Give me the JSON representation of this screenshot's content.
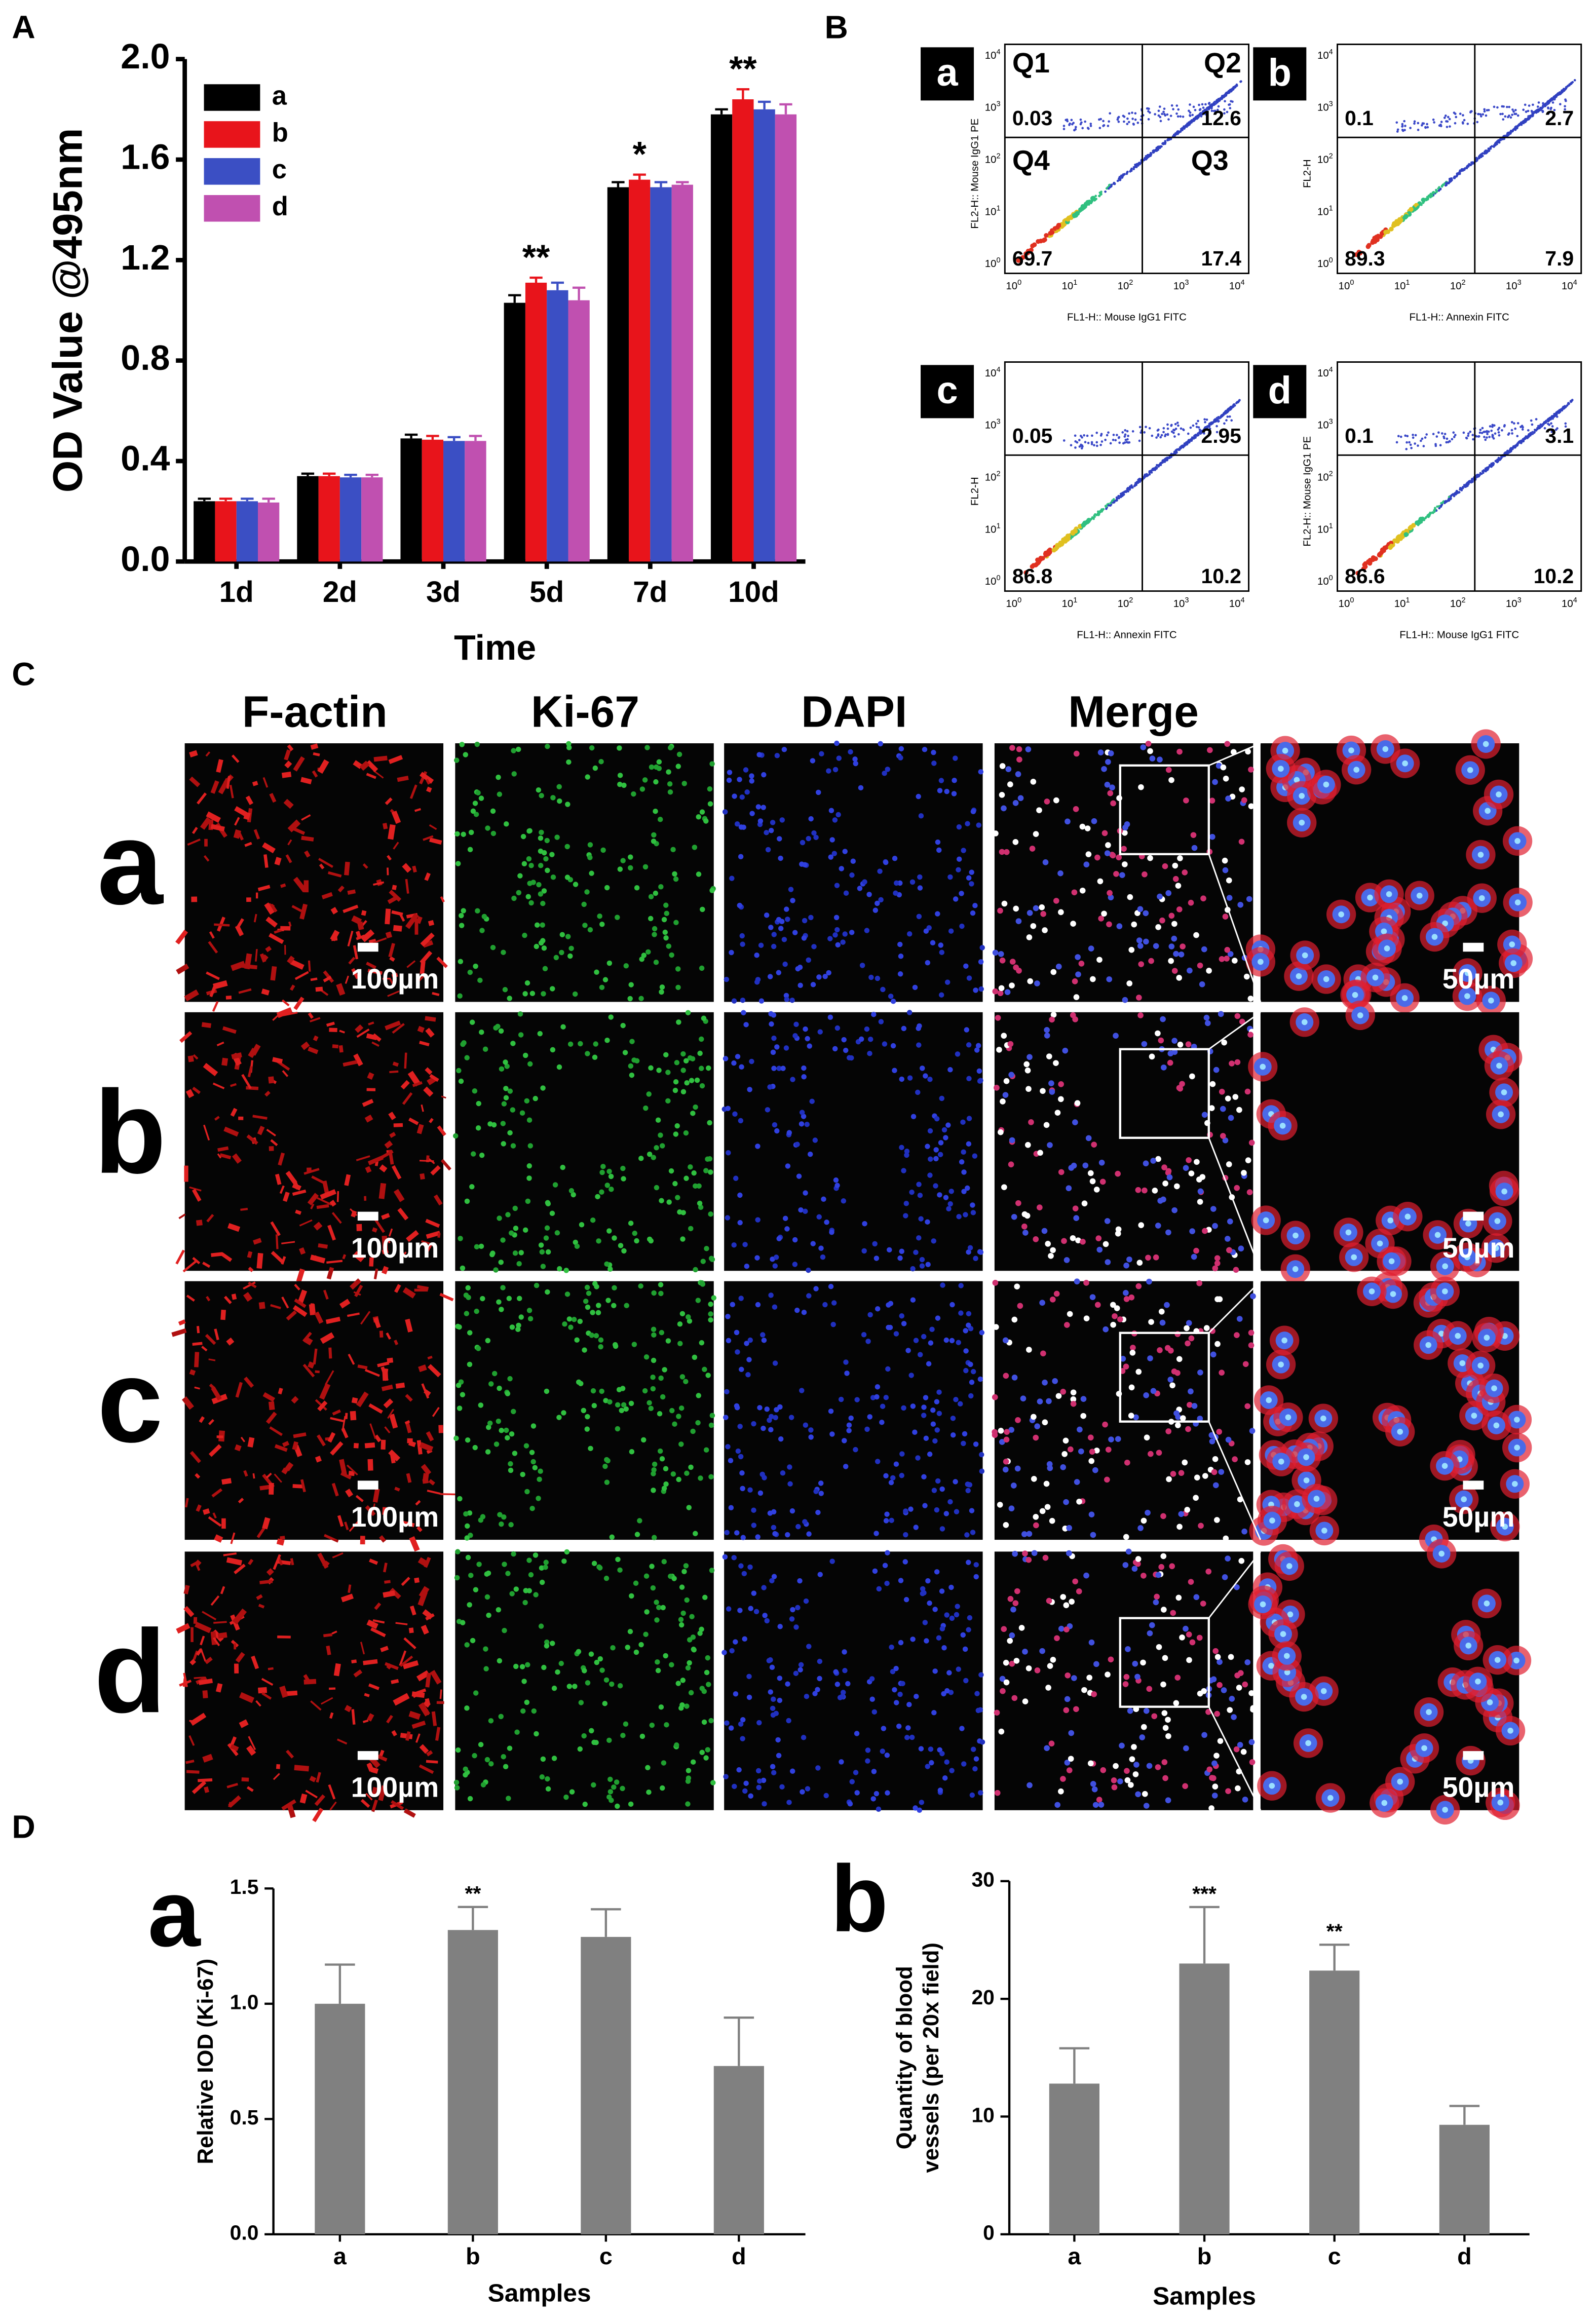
{
  "panel_labels": [
    "A",
    "B",
    "C",
    "D"
  ],
  "chart_data": [
    {
      "type": "bar",
      "ylabel": "OD Value @495nm",
      "xlabel": "Time",
      "categories": [
        "1d",
        "2d",
        "3d",
        "5d",
        "7d",
        "10d"
      ],
      "series": [
        {
          "name": "a",
          "color": "#000000",
          "values": [
            0.24,
            0.34,
            0.49,
            1.03,
            1.49,
            1.78
          ],
          "errors": [
            0.01,
            0.01,
            0.015,
            0.03,
            0.02,
            0.02
          ]
        },
        {
          "name": "b",
          "color": "#e8141b",
          "values": [
            0.24,
            0.34,
            0.485,
            1.11,
            1.52,
            1.84
          ],
          "errors": [
            0.01,
            0.01,
            0.015,
            0.02,
            0.02,
            0.04
          ]
        },
        {
          "name": "c",
          "color": "#3b4fc4",
          "values": [
            0.24,
            0.335,
            0.48,
            1.08,
            1.49,
            1.8
          ],
          "errors": [
            0.01,
            0.01,
            0.015,
            0.03,
            0.02,
            0.03
          ]
        },
        {
          "name": "d",
          "color": "#c050b0",
          "values": [
            0.235,
            0.335,
            0.48,
            1.04,
            1.5,
            1.78
          ],
          "errors": [
            0.015,
            0.01,
            0.02,
            0.05,
            0.01,
            0.04
          ]
        }
      ],
      "ylim": [
        0,
        2
      ],
      "yticks": [
        {
          "value": 0,
          "label": "0.0"
        },
        0.4,
        0.8,
        1.2,
        1.6,
        {
          "value": 2,
          "label": "2.0"
        }
      ],
      "legend": "upper-left",
      "annotations": [
        {
          "text": "**",
          "category": "5d",
          "series": "b"
        },
        {
          "text": "*",
          "category": "7d",
          "series": "b"
        },
        {
          "text": "**",
          "category": "10d",
          "series": "b"
        }
      ]
    },
    {
      "type": "bar",
      "panel": "a",
      "ylabel": [
        "Relative IOD (Ki-67)"
      ],
      "xlabel": "Samples",
      "color": "#808080",
      "categories": [
        "a",
        "b",
        "c",
        "d"
      ],
      "values": [
        1.0,
        1.32,
        1.29,
        0.73
      ],
      "errors": [
        0.17,
        0.1,
        0.12,
        0.21
      ],
      "ylim": [
        0,
        1.5
      ],
      "yticks": [
        {
          "value": 0,
          "label": "0.0"
        },
        0.5,
        {
          "value": 1,
          "label": "1.0"
        },
        1.5
      ],
      "annotations": [
        {
          "text": "**",
          "category": "b"
        }
      ]
    },
    {
      "type": "bar",
      "panel": "b",
      "ylabel": [
        "Quantity of blood",
        "vessels (per 20x field)"
      ],
      "xlabel": "Samples",
      "color": "#808080",
      "categories": [
        "a",
        "b",
        "c",
        "d"
      ],
      "values": [
        12.8,
        23,
        22.4,
        9.3
      ],
      "errors": [
        3,
        4.8,
        2.2,
        1.6
      ],
      "ylim": [
        0,
        30
      ],
      "yticks": [
        0,
        10,
        20,
        30
      ],
      "annotations": [
        {
          "text": "***",
          "category": "b"
        },
        {
          "text": "**",
          "category": "c"
        }
      ]
    }
  ],
  "flow": {
    "tick_base": "10",
    "tick_exponents": [
      "0",
      "1",
      "2",
      "3",
      "4"
    ],
    "plots": [
      {
        "label": "a",
        "quadrant_names": [
          "Q1",
          "Q2",
          "Q4",
          "Q3"
        ],
        "values": [
          0.03,
          12.6,
          69.7,
          17.4
        ],
        "xlabel": "FL1-H:: Mouse IgG1 FITC",
        "ylabel": "FL2-H:: Mouse IgG1 PE"
      },
      {
        "label": "b",
        "values": [
          0.1,
          2.7,
          89.3,
          7.9
        ],
        "xlabel": "FL1-H:: Annexin FITC",
        "ylabel": "FL2-H"
      },
      {
        "label": "c",
        "values": [
          0.05,
          2.95,
          86.8,
          10.2
        ],
        "xlabel": "FL1-H:: Annexin FITC",
        "ylabel": "FL2-H"
      },
      {
        "label": "d",
        "values": [
          0.1,
          3.1,
          86.6,
          10.2
        ],
        "xlabel": "FL1-H:: Mouse IgG1 FITC",
        "ylabel": "FL2-H:: Mouse IgG1 PE"
      }
    ]
  },
  "microscopy": {
    "columns": [
      "F-actin",
      "Ki-67",
      "DAPI",
      "Merge"
    ],
    "rows": [
      "a",
      "b",
      "c",
      "d"
    ],
    "scale_bars": [
      "100µm",
      "50µm"
    ]
  }
}
